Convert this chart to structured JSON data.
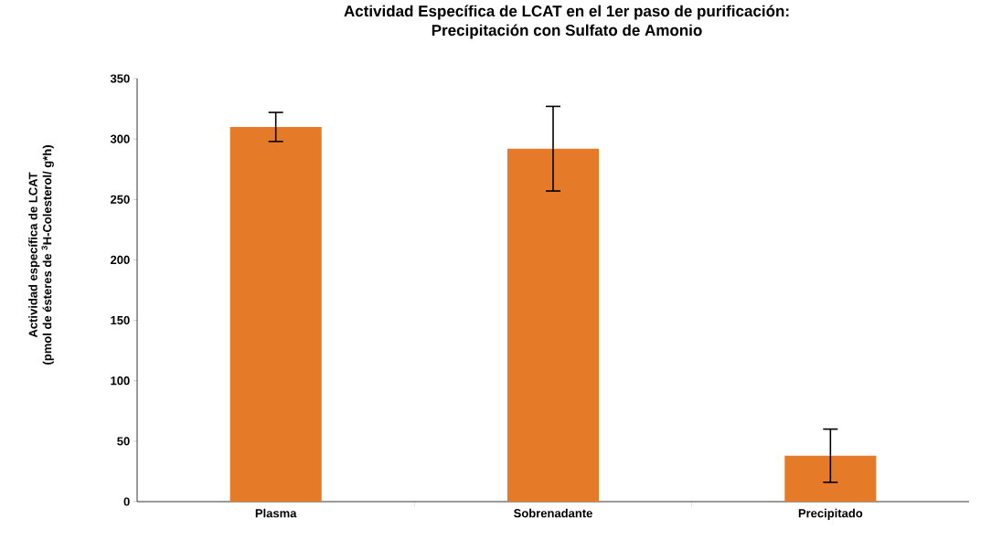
{
  "chart_data": {
    "type": "bar",
    "title": "Actividad Específica de LCAT en el 1er paso de purificación:",
    "subtitle": "Precipitación con Sulfato de Amonio",
    "ylabel": "Actividad específica de LCAT (pmol de ésteres de $^{3}$H-Colesterol/ g*h)",
    "categories": [
      "Plasma",
      "Sobrenadante",
      "Precipitado"
    ],
    "values": [
      310,
      292,
      38
    ],
    "errors": [
      12,
      35,
      22
    ],
    "color": "#e57a28",
    "ylim": [
      0,
      350
    ],
    "yticks": [
      0,
      50,
      100,
      150,
      200,
      250,
      300,
      350
    ],
    "grid": false
  }
}
